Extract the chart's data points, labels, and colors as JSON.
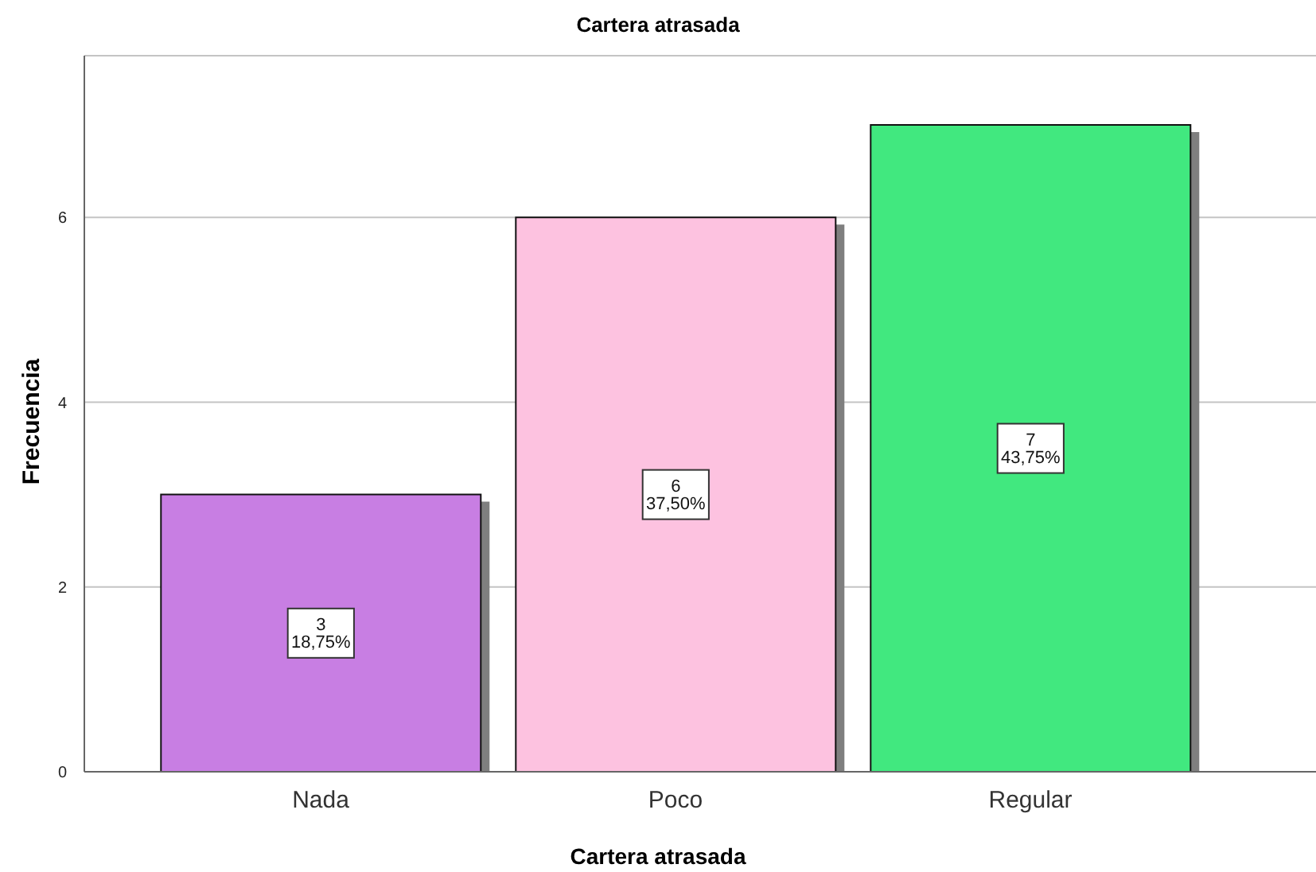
{
  "chart_data": {
    "type": "bar",
    "title": "Cartera atrasada",
    "xlabel": "Cartera atrasada",
    "ylabel": "Frecuencia",
    "categories": [
      "Nada",
      "Poco",
      "Regular"
    ],
    "values": [
      3,
      6,
      7
    ],
    "colors": [
      "#c87ee3",
      "#fdc2e0",
      "#41e87f"
    ],
    "value_labels": [
      "3\n18,75%",
      "6\n37,50%",
      "7\n43,75%"
    ],
    "ylim": [
      0,
      7.75
    ],
    "yticks": [
      0,
      2,
      4,
      6
    ],
    "grid": "y"
  }
}
